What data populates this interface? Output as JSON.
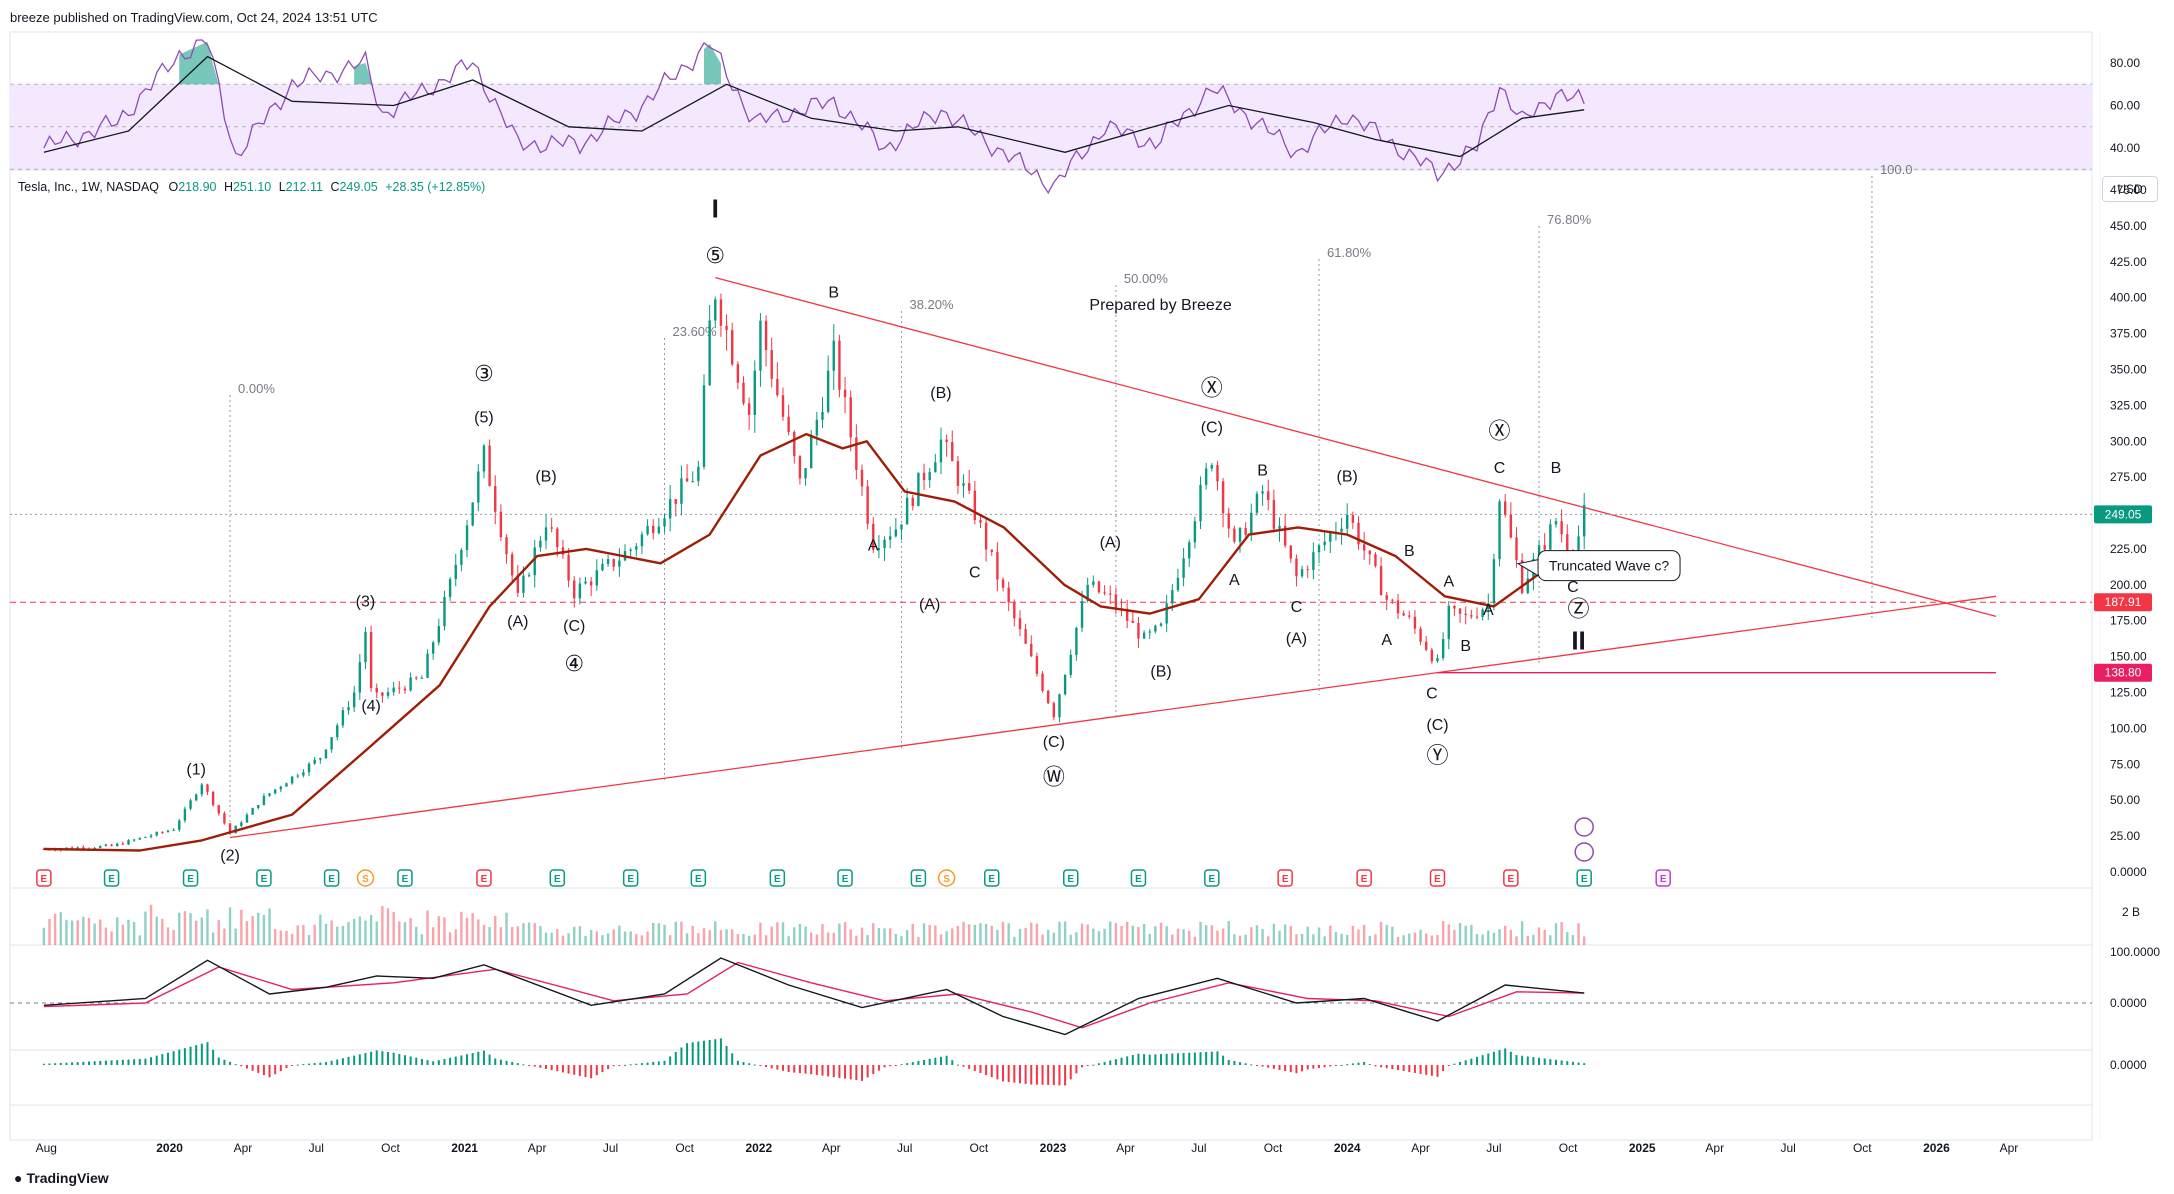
{
  "publisher_line": "breeze published on TradingView.com, Oct 24, 2024 13:51 UTC",
  "symbol_legend": {
    "name": "Tesla, Inc., 1W, NASDAQ",
    "o_label": "O",
    "o_value": "218.90",
    "h_label": "H",
    "h_value": "251.10",
    "l_label": "L",
    "l_value": "212.11",
    "c_label": "C",
    "c_value": "249.05",
    "change": "+28.35 (+12.85%)"
  },
  "currency_button": "USD",
  "watermark": "TradingView",
  "colors": {
    "up": "#089981",
    "down": "#f23645",
    "trendline": "#f23645",
    "ma": "#a01e07",
    "rsi": "#8e4bb6",
    "rsi_band": "#f3e8fd",
    "macd_signal": "#e91e63",
    "earnings_positive": "#089981",
    "earnings_negative": "#f23645",
    "dividend": "#f59d26"
  },
  "chart_data": {
    "type": "candlestick",
    "title": "Tesla, Inc., 1W, NASDAQ",
    "annotation_title": "Prepared by Breeze",
    "x_axis_labels": [
      "Aug",
      "2020",
      "Apr",
      "Jul",
      "Oct",
      "2021",
      "Apr",
      "Jul",
      "Oct",
      "2022",
      "Apr",
      "Jul",
      "Oct",
      "2023",
      "Apr",
      "Jul",
      "Oct",
      "2024",
      "Apr",
      "Jul",
      "Oct",
      "2025",
      "Apr",
      "Jul",
      "Oct",
      "2026",
      "Apr"
    ],
    "y_axis_labels": [
      "475.00",
      "450.00",
      "425.00",
      "400.00",
      "375.00",
      "350.00",
      "325.00",
      "300.00",
      "275.00",
      "250.00",
      "225.00",
      "200.00",
      "175.00",
      "150.00",
      "125.00",
      "100.00",
      "75.00",
      "50.00",
      "25.00",
      "0.0000"
    ],
    "ylim": [
      0,
      490
    ],
    "price_labels": [
      {
        "value": 249.05,
        "label": "249.05"
      },
      {
        "value": 187.91,
        "label": "187.91"
      },
      {
        "value": 138.8,
        "label": "138.80"
      }
    ],
    "fib_levels": [
      {
        "label": "0.00%",
        "date": "2020-03-16"
      },
      {
        "label": "23.60%",
        "date": "2021-09-06"
      },
      {
        "label": "38.20%",
        "date": "2022-06-27"
      },
      {
        "label": "50.00%",
        "date": "2023-03-20"
      },
      {
        "label": "61.80%",
        "date": "2023-11-27"
      },
      {
        "label": "76.80%",
        "date": "2024-08-26"
      },
      {
        "label": "100.0",
        "date": "2025-10-13"
      }
    ],
    "wave_labels": [
      {
        "text": "(1)",
        "date": "2020-02-03",
        "price": 68
      },
      {
        "text": "(2)",
        "date": "2020-03-16",
        "price": 8
      },
      {
        "text": "(3)",
        "date": "2020-08-31",
        "price": 185
      },
      {
        "text": "(4)",
        "date": "2020-09-07",
        "price": 112
      },
      {
        "text": "③",
        "date": "2021-01-25",
        "price": 342
      },
      {
        "text": "(5)",
        "date": "2021-01-25",
        "price": 313
      },
      {
        "text": "(B)",
        "date": "2021-04-12",
        "price": 272
      },
      {
        "text": "(A)",
        "date": "2021-03-08",
        "price": 171
      },
      {
        "text": "(C)",
        "date": "2021-05-17",
        "price": 168
      },
      {
        "text": "④",
        "date": "2021-05-17",
        "price": 140
      },
      {
        "text": "I",
        "date": "2021-11-08",
        "price": 456
      },
      {
        "text": "⑤",
        "date": "2021-11-08",
        "price": 424
      },
      {
        "text": "B",
        "date": "2022-04-04",
        "price": 400
      },
      {
        "text": "A",
        "date": "2022-05-23",
        "price": 224
      },
      {
        "text": "C",
        "date": "2022-09-26",
        "price": 205
      },
      {
        "text": "(B)",
        "date": "2022-08-15",
        "price": 330
      },
      {
        "text": "(A)",
        "date": "2022-08-01",
        "price": 183
      },
      {
        "text": "(C)",
        "date": "2023-01-02",
        "price": 87
      },
      {
        "text": "Ⓦ",
        "date": "2023-01-02",
        "price": 61
      },
      {
        "text": "(A)",
        "date": "2023-03-13",
        "price": 226
      },
      {
        "text": "(B)",
        "date": "2023-05-15",
        "price": 136
      },
      {
        "text": "Ⓧ",
        "date": "2023-07-17",
        "price": 332
      },
      {
        "text": "(C)",
        "date": "2023-07-17",
        "price": 306
      },
      {
        "text": "A",
        "date": "2023-08-14",
        "price": 200
      },
      {
        "text": "B",
        "date": "2023-09-18",
        "price": 276
      },
      {
        "text": "C",
        "date": "2023-10-30",
        "price": 181
      },
      {
        "text": "(A)",
        "date": "2023-10-30",
        "price": 159
      },
      {
        "text": "(B)",
        "date": "2024-01-01",
        "price": 272
      },
      {
        "text": "B",
        "date": "2024-03-18",
        "price": 220
      },
      {
        "text": "A",
        "date": "2024-02-19",
        "price": 158
      },
      {
        "text": "A",
        "date": "2024-05-06",
        "price": 199
      },
      {
        "text": "B",
        "date": "2024-05-27",
        "price": 154
      },
      {
        "text": "C",
        "date": "2024-04-15",
        "price": 121
      },
      {
        "text": "(C)",
        "date": "2024-04-22",
        "price": 99
      },
      {
        "text": "Ⓨ",
        "date": "2024-04-22",
        "price": 76
      },
      {
        "text": "Ⓧ",
        "date": "2024-07-08",
        "price": 302
      },
      {
        "text": "C",
        "date": "2024-07-08",
        "price": 278
      },
      {
        "text": "A",
        "date": "2024-06-24",
        "price": 179
      },
      {
        "text": "B",
        "date": "2024-09-16",
        "price": 278
      },
      {
        "text": "C",
        "date": "2024-10-07",
        "price": 195
      },
      {
        "text": "Ⓩ",
        "date": "2024-10-14",
        "price": 178
      },
      {
        "text": "II",
        "date": "2024-10-14",
        "price": 155
      }
    ],
    "callout": {
      "text": "Truncated Wave c?",
      "date": "2024-12-02",
      "price": 205
    },
    "trendlines": [
      {
        "name": "upper",
        "from": {
          "date": "2021-11-08",
          "price": 414
        },
        "to": {
          "date": "2026-03-16",
          "price": 178
        }
      },
      {
        "name": "lower",
        "from": {
          "date": "2020-03-16",
          "price": 24
        },
        "to": {
          "date": "2026-03-16",
          "price": 192
        }
      },
      {
        "name": "support",
        "from": {
          "date": "2024-04-22",
          "price": 138.8
        },
        "to": {
          "date": "2026-03-16",
          "price": 138.8
        }
      }
    ],
    "price_anchors": [
      [
        "2019-07-29",
        16
      ],
      [
        "2019-10-21",
        18
      ],
      [
        "2020-01-06",
        30
      ],
      [
        "2020-02-10",
        62
      ],
      [
        "2020-03-16",
        27
      ],
      [
        "2020-04-27",
        52
      ],
      [
        "2020-07-06",
        80
      ],
      [
        "2020-08-17",
        125
      ],
      [
        "2020-08-31",
        168
      ],
      [
        "2020-09-08",
        120
      ],
      [
        "2020-11-09",
        135
      ],
      [
        "2020-12-14",
        200
      ],
      [
        "2021-01-25",
        290
      ],
      [
        "2021-03-08",
        190
      ],
      [
        "2021-04-12",
        245
      ],
      [
        "2021-05-17",
        195
      ],
      [
        "2021-07-26",
        225
      ],
      [
        "2021-10-18",
        280
      ],
      [
        "2021-11-01",
        380
      ],
      [
        "2021-11-08",
        405
      ],
      [
        "2021-12-20",
        320
      ],
      [
        "2022-01-03",
        380
      ],
      [
        "2022-02-21",
        270
      ],
      [
        "2022-04-04",
        360
      ],
      [
        "2022-05-23",
        230
      ],
      [
        "2022-06-20",
        240
      ],
      [
        "2022-08-15",
        300
      ],
      [
        "2022-09-26",
        250
      ],
      [
        "2022-10-31",
        195
      ],
      [
        "2023-01-02",
        110
      ],
      [
        "2023-02-13",
        200
      ],
      [
        "2023-03-13",
        190
      ],
      [
        "2023-04-24",
        162
      ],
      [
        "2023-05-15",
        170
      ],
      [
        "2023-07-17",
        290
      ],
      [
        "2023-08-14",
        225
      ],
      [
        "2023-09-18",
        265
      ],
      [
        "2023-10-30",
        205
      ],
      [
        "2024-01-01",
        250
      ],
      [
        "2024-02-19",
        190
      ],
      [
        "2024-03-18",
        175
      ],
      [
        "2024-04-22",
        145
      ],
      [
        "2024-05-06",
        180
      ],
      [
        "2024-05-27",
        177
      ],
      [
        "2024-06-24",
        187
      ],
      [
        "2024-07-08",
        262
      ],
      [
        "2024-08-05",
        200
      ],
      [
        "2024-09-16",
        245
      ],
      [
        "2024-10-07",
        219
      ],
      [
        "2024-10-21",
        249.05
      ]
    ],
    "ma_series": [
      [
        "2019-07-29",
        16
      ],
      [
        "2019-11-25",
        15
      ],
      [
        "2020-02-10",
        22
      ],
      [
        "2020-06-01",
        40
      ],
      [
        "2020-09-01",
        85
      ],
      [
        "2020-12-01",
        130
      ],
      [
        "2021-02-01",
        185
      ],
      [
        "2021-04-01",
        220
      ],
      [
        "2021-06-01",
        225
      ],
      [
        "2021-09-01",
        215
      ],
      [
        "2021-11-01",
        235
      ],
      [
        "2022-01-03",
        290
      ],
      [
        "2022-03-01",
        305
      ],
      [
        "2022-04-15",
        295
      ],
      [
        "2022-05-15",
        300
      ],
      [
        "2022-07-01",
        265
      ],
      [
        "2022-09-01",
        258
      ],
      [
        "2022-11-01",
        240
      ],
      [
        "2023-01-15",
        200
      ],
      [
        "2023-03-01",
        185
      ],
      [
        "2023-05-01",
        180
      ],
      [
        "2023-07-01",
        190
      ],
      [
        "2023-09-01",
        235
      ],
      [
        "2023-11-01",
        240
      ],
      [
        "2024-01-01",
        235
      ],
      [
        "2024-03-01",
        220
      ],
      [
        "2024-05-01",
        192
      ],
      [
        "2024-07-01",
        185
      ],
      [
        "2024-09-01",
        210
      ],
      [
        "2024-10-21",
        222
      ]
    ],
    "earnings_markers": [
      {
        "date": "2019-07-29",
        "type": "E",
        "kind": "negative"
      },
      {
        "date": "2019-10-21",
        "type": "E",
        "kind": "positive"
      },
      {
        "date": "2020-01-27",
        "type": "E",
        "kind": "positive"
      },
      {
        "date": "2020-04-27",
        "type": "E",
        "kind": "positive"
      },
      {
        "date": "2020-07-20",
        "type": "E",
        "kind": "positive"
      },
      {
        "date": "2020-08-31",
        "type": "S",
        "kind": "dividend"
      },
      {
        "date": "2020-10-19",
        "type": "E",
        "kind": "positive"
      },
      {
        "date": "2021-01-25",
        "type": "E",
        "kind": "negative"
      },
      {
        "date": "2021-04-26",
        "type": "E",
        "kind": "positive"
      },
      {
        "date": "2021-07-26",
        "type": "E",
        "kind": "positive"
      },
      {
        "date": "2021-10-18",
        "type": "E",
        "kind": "positive"
      },
      {
        "date": "2022-01-24",
        "type": "E",
        "kind": "positive"
      },
      {
        "date": "2022-04-18",
        "type": "E",
        "kind": "positive"
      },
      {
        "date": "2022-07-18",
        "type": "E",
        "kind": "positive"
      },
      {
        "date": "2022-08-22",
        "type": "S",
        "kind": "dividend"
      },
      {
        "date": "2022-10-17",
        "type": "E",
        "kind": "positive"
      },
      {
        "date": "2023-01-23",
        "type": "E",
        "kind": "positive"
      },
      {
        "date": "2023-04-17",
        "type": "E",
        "kind": "positive"
      },
      {
        "date": "2023-07-17",
        "type": "E",
        "kind": "positive"
      },
      {
        "date": "2023-10-16",
        "type": "E",
        "kind": "negative"
      },
      {
        "date": "2024-01-22",
        "type": "E",
        "kind": "negative"
      },
      {
        "date": "2024-04-22",
        "type": "E",
        "kind": "negative"
      },
      {
        "date": "2024-07-22",
        "type": "E",
        "kind": "negative"
      },
      {
        "date": "2024-10-21",
        "type": "E",
        "kind": "positive"
      },
      {
        "date": "2025-01-27",
        "type": "E",
        "kind": "upcoming"
      }
    ],
    "rsi_panel": {
      "y_labels": [
        "80.00",
        "60.00",
        "40.00"
      ],
      "band": [
        30,
        70
      ],
      "ylim": [
        22,
        92
      ],
      "rsi_series": [
        [
          "2019-07-29",
          40
        ],
        [
          "2019-10-28",
          52
        ],
        [
          "2020-01-13",
          84
        ],
        [
          "2020-02-17",
          90
        ],
        [
          "2020-03-23",
          36
        ],
        [
          "2020-06-01",
          70
        ],
        [
          "2020-08-31",
          80
        ],
        [
          "2020-09-21",
          56
        ],
        [
          "2021-01-11",
          80
        ],
        [
          "2021-03-08",
          42
        ],
        [
          "2021-05-24",
          42
        ],
        [
          "2021-08-02",
          58
        ],
        [
          "2021-11-01",
          89
        ],
        [
          "2021-12-27",
          52
        ],
        [
          "2022-04-04",
          62
        ],
        [
          "2022-06-06",
          40
        ],
        [
          "2022-08-15",
          58
        ],
        [
          "2022-10-03",
          45
        ],
        [
          "2023-01-02",
          22
        ],
        [
          "2023-03-06",
          50
        ],
        [
          "2023-05-08",
          42
        ],
        [
          "2023-07-17",
          68
        ],
        [
          "2023-09-04",
          54
        ],
        [
          "2023-10-30",
          38
        ],
        [
          "2024-01-01",
          56
        ],
        [
          "2024-04-22",
          28
        ],
        [
          "2024-06-10",
          40
        ],
        [
          "2024-07-08",
          70
        ],
        [
          "2024-08-05",
          52
        ],
        [
          "2024-09-16",
          66
        ],
        [
          "2024-10-21",
          61
        ]
      ],
      "rsi_ma_series": [
        [
          "2019-07-29",
          38
        ],
        [
          "2019-11-11",
          48
        ],
        [
          "2020-02-17",
          83
        ],
        [
          "2020-06-01",
          62
        ],
        [
          "2020-10-05",
          60
        ],
        [
          "2021-01-11",
          72
        ],
        [
          "2021-05-10",
          50
        ],
        [
          "2021-08-09",
          48
        ],
        [
          "2021-11-22",
          70
        ],
        [
          "2022-03-07",
          54
        ],
        [
          "2022-06-20",
          48
        ],
        [
          "2022-09-05",
          50
        ],
        [
          "2023-01-16",
          38
        ],
        [
          "2023-04-17",
          48
        ],
        [
          "2023-08-07",
          60
        ],
        [
          "2023-11-20",
          52
        ],
        [
          "2024-02-05",
          44
        ],
        [
          "2024-05-20",
          36
        ],
        [
          "2024-08-05",
          54
        ],
        [
          "2024-10-21",
          58
        ]
      ]
    },
    "volume_panel": {
      "y_labels": [
        "2 B"
      ]
    },
    "macd_panel": {
      "y_labels": [
        "100.0000",
        "0.0000"
      ],
      "macd_series": [
        [
          "2019-07-29",
          -5
        ],
        [
          "2019-12-02",
          10
        ],
        [
          "2020-02-17",
          95
        ],
        [
          "2020-05-04",
          20
        ],
        [
          "2020-07-13",
          35
        ],
        [
          "2020-09-14",
          60
        ],
        [
          "2020-11-23",
          55
        ],
        [
          "2021-01-25",
          85
        ],
        [
          "2021-06-07",
          -5
        ],
        [
          "2021-09-06",
          20
        ],
        [
          "2021-11-15",
          100
        ],
        [
          "2022-02-07",
          40
        ],
        [
          "2022-05-09",
          -10
        ],
        [
          "2022-08-22",
          30
        ],
        [
          "2022-10-31",
          -30
        ],
        [
          "2023-01-16",
          -70
        ],
        [
          "2023-04-17",
          10
        ],
        [
          "2023-07-24",
          55
        ],
        [
          "2023-10-30",
          0
        ],
        [
          "2024-01-22",
          10
        ],
        [
          "2024-04-22",
          -40
        ],
        [
          "2024-07-15",
          40
        ],
        [
          "2024-10-21",
          22
        ]
      ],
      "signal_series": [
        [
          "2019-07-29",
          -8
        ],
        [
          "2019-12-02",
          0
        ],
        [
          "2020-03-02",
          80
        ],
        [
          "2020-06-01",
          30
        ],
        [
          "2020-10-05",
          45
        ],
        [
          "2021-02-08",
          75
        ],
        [
          "2021-07-05",
          5
        ],
        [
          "2021-10-04",
          20
        ],
        [
          "2021-12-06",
          90
        ],
        [
          "2022-03-07",
          45
        ],
        [
          "2022-06-06",
          5
        ],
        [
          "2022-09-05",
          20
        ],
        [
          "2022-12-05",
          -20
        ],
        [
          "2023-02-06",
          -55
        ],
        [
          "2023-05-01",
          0
        ],
        [
          "2023-08-07",
          45
        ],
        [
          "2023-11-13",
          10
        ],
        [
          "2024-02-05",
          5
        ],
        [
          "2024-05-06",
          -30
        ],
        [
          "2024-07-29",
          25
        ],
        [
          "2024-10-21",
          22
        ]
      ]
    },
    "histogram_panel": {
      "y_labels": [
        "0.0000"
      ]
    }
  }
}
